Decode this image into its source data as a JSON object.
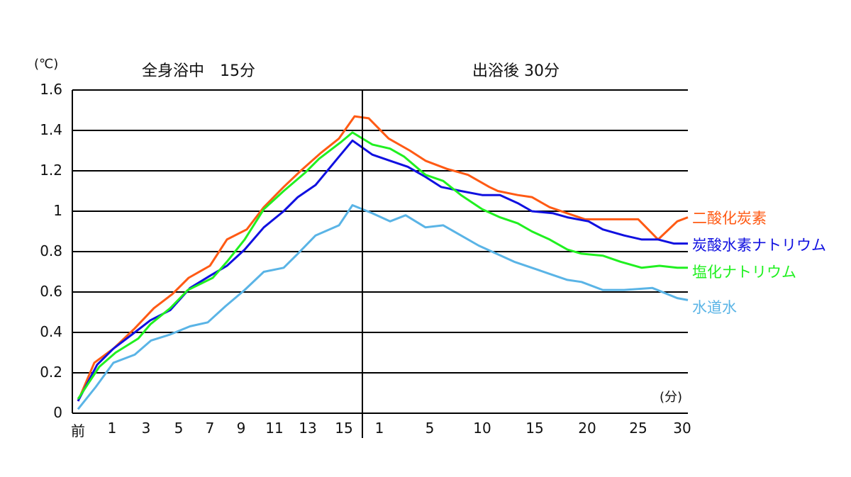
{
  "chart_data": {
    "type": "line",
    "title_left": "全身浴中　15分",
    "title_right": "出浴後 30分",
    "ylabel": "(℃)",
    "xlabel": "(分)",
    "ylim": [
      0,
      1.6
    ],
    "yticks": [
      "1.6",
      "1.4",
      "1.2",
      "1",
      "0.8",
      "0.6",
      "0.4",
      "0.2",
      "0"
    ],
    "xticks_bath": [
      "前",
      "1",
      "3",
      "5",
      "7",
      "9",
      "11",
      "13",
      "15"
    ],
    "xticks_after": [
      "1",
      "5",
      "10",
      "15",
      "20",
      "25",
      "30"
    ],
    "grid": true,
    "legend_position": "right",
    "series": [
      {
        "name": "二酸化炭素",
        "color": "#ff5a14",
        "points": [
          [
            110,
            0.06
          ],
          [
            133,
            0.25
          ],
          [
            160,
            0.32
          ],
          [
            190,
            0.42
          ],
          [
            217,
            0.52
          ],
          [
            243,
            0.59
          ],
          [
            266,
            0.67
          ],
          [
            296,
            0.73
          ],
          [
            320,
            0.86
          ],
          [
            348,
            0.91
          ],
          [
            372,
            1.02
          ],
          [
            400,
            1.12
          ],
          [
            424,
            1.2
          ],
          [
            453,
            1.29
          ],
          [
            478,
            1.36
          ],
          [
            500,
            1.47
          ],
          [
            520,
            1.46
          ],
          [
            548,
            1.36
          ],
          [
            578,
            1.3
          ],
          [
            600,
            1.25
          ],
          [
            630,
            1.21
          ],
          [
            660,
            1.18
          ],
          [
            690,
            1.12
          ],
          [
            702,
            1.1
          ],
          [
            730,
            1.08
          ],
          [
            750,
            1.07
          ],
          [
            775,
            1.02
          ],
          [
            800,
            0.99
          ],
          [
            825,
            0.96
          ],
          [
            860,
            0.96
          ],
          [
            900,
            0.96
          ],
          [
            928,
            0.86
          ],
          [
            955,
            0.95
          ],
          [
            970,
            0.97
          ]
        ]
      },
      {
        "name": "炭酸水素ナトリウム",
        "color": "#1010e0",
        "points": [
          [
            110,
            0.06
          ],
          [
            137,
            0.24
          ],
          [
            160,
            0.32
          ],
          [
            190,
            0.4
          ],
          [
            212,
            0.46
          ],
          [
            240,
            0.51
          ],
          [
            268,
            0.62
          ],
          [
            296,
            0.68
          ],
          [
            320,
            0.73
          ],
          [
            345,
            0.81
          ],
          [
            372,
            0.92
          ],
          [
            400,
            1.0
          ],
          [
            420,
            1.07
          ],
          [
            445,
            1.13
          ],
          [
            478,
            1.27
          ],
          [
            497,
            1.35
          ],
          [
            525,
            1.28
          ],
          [
            550,
            1.25
          ],
          [
            575,
            1.22
          ],
          [
            600,
            1.17
          ],
          [
            622,
            1.12
          ],
          [
            650,
            1.1
          ],
          [
            680,
            1.08
          ],
          [
            705,
            1.08
          ],
          [
            730,
            1.04
          ],
          [
            750,
            1.0
          ],
          [
            780,
            0.99
          ],
          [
            800,
            0.97
          ],
          [
            830,
            0.95
          ],
          [
            850,
            0.91
          ],
          [
            880,
            0.88
          ],
          [
            905,
            0.86
          ],
          [
            928,
            0.86
          ],
          [
            950,
            0.84
          ],
          [
            970,
            0.84
          ]
        ]
      },
      {
        "name": "塩化ナトリウム",
        "color": "#20f020",
        "points": [
          [
            110,
            0.07
          ],
          [
            140,
            0.23
          ],
          [
            163,
            0.3
          ],
          [
            195,
            0.37
          ],
          [
            212,
            0.44
          ],
          [
            240,
            0.52
          ],
          [
            265,
            0.61
          ],
          [
            300,
            0.67
          ],
          [
            320,
            0.75
          ],
          [
            345,
            0.86
          ],
          [
            372,
            1.01
          ],
          [
            400,
            1.1
          ],
          [
            430,
            1.19
          ],
          [
            450,
            1.26
          ],
          [
            480,
            1.34
          ],
          [
            497,
            1.39
          ],
          [
            525,
            1.33
          ],
          [
            550,
            1.31
          ],
          [
            570,
            1.27
          ],
          [
            600,
            1.18
          ],
          [
            625,
            1.15
          ],
          [
            650,
            1.08
          ],
          [
            680,
            1.01
          ],
          [
            705,
            0.97
          ],
          [
            730,
            0.94
          ],
          [
            750,
            0.9
          ],
          [
            775,
            0.86
          ],
          [
            800,
            0.81
          ],
          [
            820,
            0.79
          ],
          [
            850,
            0.78
          ],
          [
            875,
            0.75
          ],
          [
            905,
            0.72
          ],
          [
            930,
            0.73
          ],
          [
            955,
            0.72
          ],
          [
            970,
            0.72
          ]
        ]
      },
      {
        "name": "水道水",
        "color": "#5ab4e6",
        "points": [
          [
            110,
            0.02
          ],
          [
            135,
            0.13
          ],
          [
            160,
            0.25
          ],
          [
            190,
            0.29
          ],
          [
            213,
            0.36
          ],
          [
            240,
            0.39
          ],
          [
            268,
            0.43
          ],
          [
            293,
            0.45
          ],
          [
            318,
            0.53
          ],
          [
            345,
            0.61
          ],
          [
            372,
            0.7
          ],
          [
            400,
            0.72
          ],
          [
            420,
            0.79
          ],
          [
            445,
            0.88
          ],
          [
            478,
            0.93
          ],
          [
            497,
            1.03
          ],
          [
            525,
            0.99
          ],
          [
            550,
            0.95
          ],
          [
            572,
            0.98
          ],
          [
            600,
            0.92
          ],
          [
            625,
            0.93
          ],
          [
            650,
            0.88
          ],
          [
            675,
            0.83
          ],
          [
            700,
            0.79
          ],
          [
            725,
            0.75
          ],
          [
            750,
            0.72
          ],
          [
            775,
            0.69
          ],
          [
            800,
            0.66
          ],
          [
            820,
            0.65
          ],
          [
            850,
            0.61
          ],
          [
            880,
            0.61
          ],
          [
            920,
            0.62
          ],
          [
            955,
            0.57
          ],
          [
            970,
            0.56
          ]
        ]
      }
    ]
  }
}
